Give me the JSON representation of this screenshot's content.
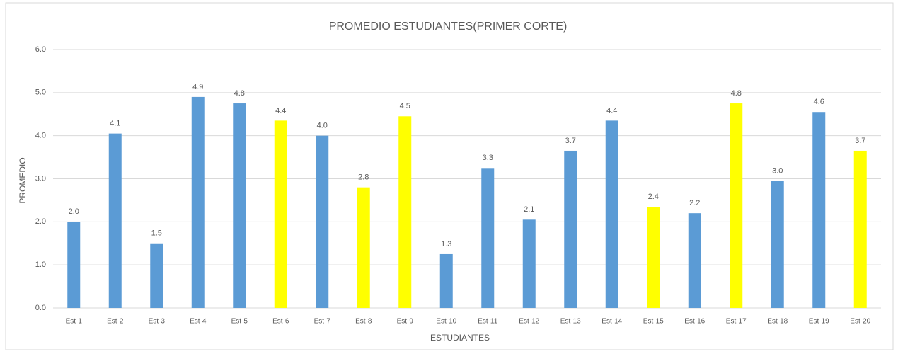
{
  "chart_data": {
    "type": "bar",
    "title": "PROMEDIO ESTUDIANTES(PRIMER CORTE)",
    "x_label": "ESTUDIANTES",
    "y_label": "PROMEDIO",
    "categories": [
      "Est-1",
      "Est-2",
      "Est-3",
      "Est-4",
      "Est-5",
      "Est-6",
      "Est-7",
      "Est-8",
      "Est-9",
      "Est-10",
      "Est-11",
      "Est-12",
      "Est-13",
      "Est-14",
      "Est-15",
      "Est-16",
      "Est-17",
      "Est-18",
      "Est-19",
      "Est-20"
    ],
    "values": [
      2.0,
      4.05,
      1.5,
      4.9,
      4.75,
      4.35,
      4.0,
      2.8,
      4.45,
      1.25,
      3.25,
      2.05,
      3.65,
      4.35,
      2.35,
      2.2,
      4.75,
      2.95,
      4.55,
      3.65
    ],
    "value_labels": [
      "2.0",
      "4.1",
      "1.5",
      "4.9",
      "4.8",
      "4.4",
      "4.0",
      "2.8",
      "4.5",
      "1.3",
      "3.3",
      "2.1",
      "3.7",
      "4.4",
      "2.4",
      "2.2",
      "4.8",
      "3.0",
      "4.6",
      "3.7"
    ],
    "colors": [
      "#5b9bd5",
      "#5b9bd5",
      "#5b9bd5",
      "#5b9bd5",
      "#5b9bd5",
      "#ffff00",
      "#5b9bd5",
      "#ffff00",
      "#ffff00",
      "#5b9bd5",
      "#5b9bd5",
      "#5b9bd5",
      "#5b9bd5",
      "#5b9bd5",
      "#ffff00",
      "#5b9bd5",
      "#ffff00",
      "#5b9bd5",
      "#5b9bd5",
      "#ffff00"
    ],
    "ylim": [
      0,
      6
    ],
    "yticks": [
      {
        "value": 0,
        "label": "0.0"
      },
      {
        "value": 1,
        "label": "1.0"
      },
      {
        "value": 2,
        "label": "2.0"
      },
      {
        "value": 3,
        "label": "3.0"
      },
      {
        "value": 4,
        "label": "4.0"
      },
      {
        "value": 5,
        "label": "5.0"
      },
      {
        "value": 6,
        "label": "6.0"
      }
    ],
    "grid": true
  }
}
